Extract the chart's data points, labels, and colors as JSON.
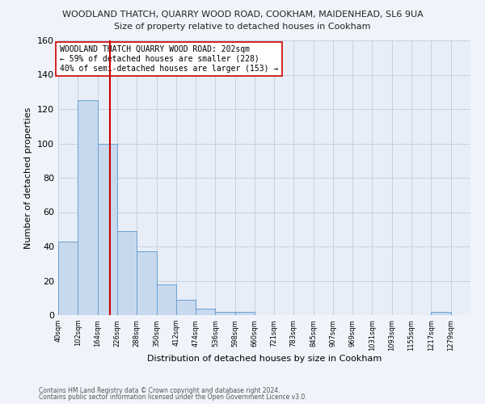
{
  "title1": "WOODLAND THATCH, QUARRY WOOD ROAD, COOKHAM, MAIDENHEAD, SL6 9UA",
  "title2": "Size of property relative to detached houses in Cookham",
  "xlabel": "Distribution of detached houses by size in Cookham",
  "ylabel": "Number of detached properties",
  "bar_heights": [
    43,
    125,
    100,
    49,
    37,
    18,
    9,
    4,
    2,
    2,
    0,
    0,
    0,
    0,
    0,
    0,
    0,
    0,
    0,
    2,
    0
  ],
  "bin_edges": [
    40,
    102,
    164,
    226,
    288,
    350,
    412,
    474,
    536,
    598,
    660,
    721,
    783,
    845,
    907,
    969,
    1031,
    1093,
    1155,
    1217,
    1279,
    1341
  ],
  "tick_labels": [
    "40sqm",
    "102sqm",
    "164sqm",
    "226sqm",
    "288sqm",
    "350sqm",
    "412sqm",
    "474sqm",
    "536sqm",
    "598sqm",
    "660sqm",
    "721sqm",
    "783sqm",
    "845sqm",
    "907sqm",
    "969sqm",
    "1031sqm",
    "1093sqm",
    "1155sqm",
    "1217sqm",
    "1279sqm"
  ],
  "bar_color": "#c8d9ee",
  "bar_edge_color": "#6a9fd0",
  "vline_x": 202,
  "vline_color": "#cc0000",
  "ylim": [
    0,
    160
  ],
  "yticks": [
    0,
    20,
    40,
    60,
    80,
    100,
    120,
    140,
    160
  ],
  "annotation_title": "WOODLAND THATCH QUARRY WOOD ROAD: 202sqm",
  "annotation_line1": "← 59% of detached houses are smaller (228)",
  "annotation_line2": "40% of semi-detached houses are larger (153) →",
  "annotation_box_color": "#ffffff",
  "annotation_box_edge": "#cc0000",
  "grid_color": "#c8d0e0",
  "bg_color": "#e8eef8",
  "fig_bg_color": "#f0f4fa",
  "footnote1": "Contains HM Land Registry data © Crown copyright and database right 2024.",
  "footnote2": "Contains public sector information licensed under the Open Government Licence v3.0."
}
